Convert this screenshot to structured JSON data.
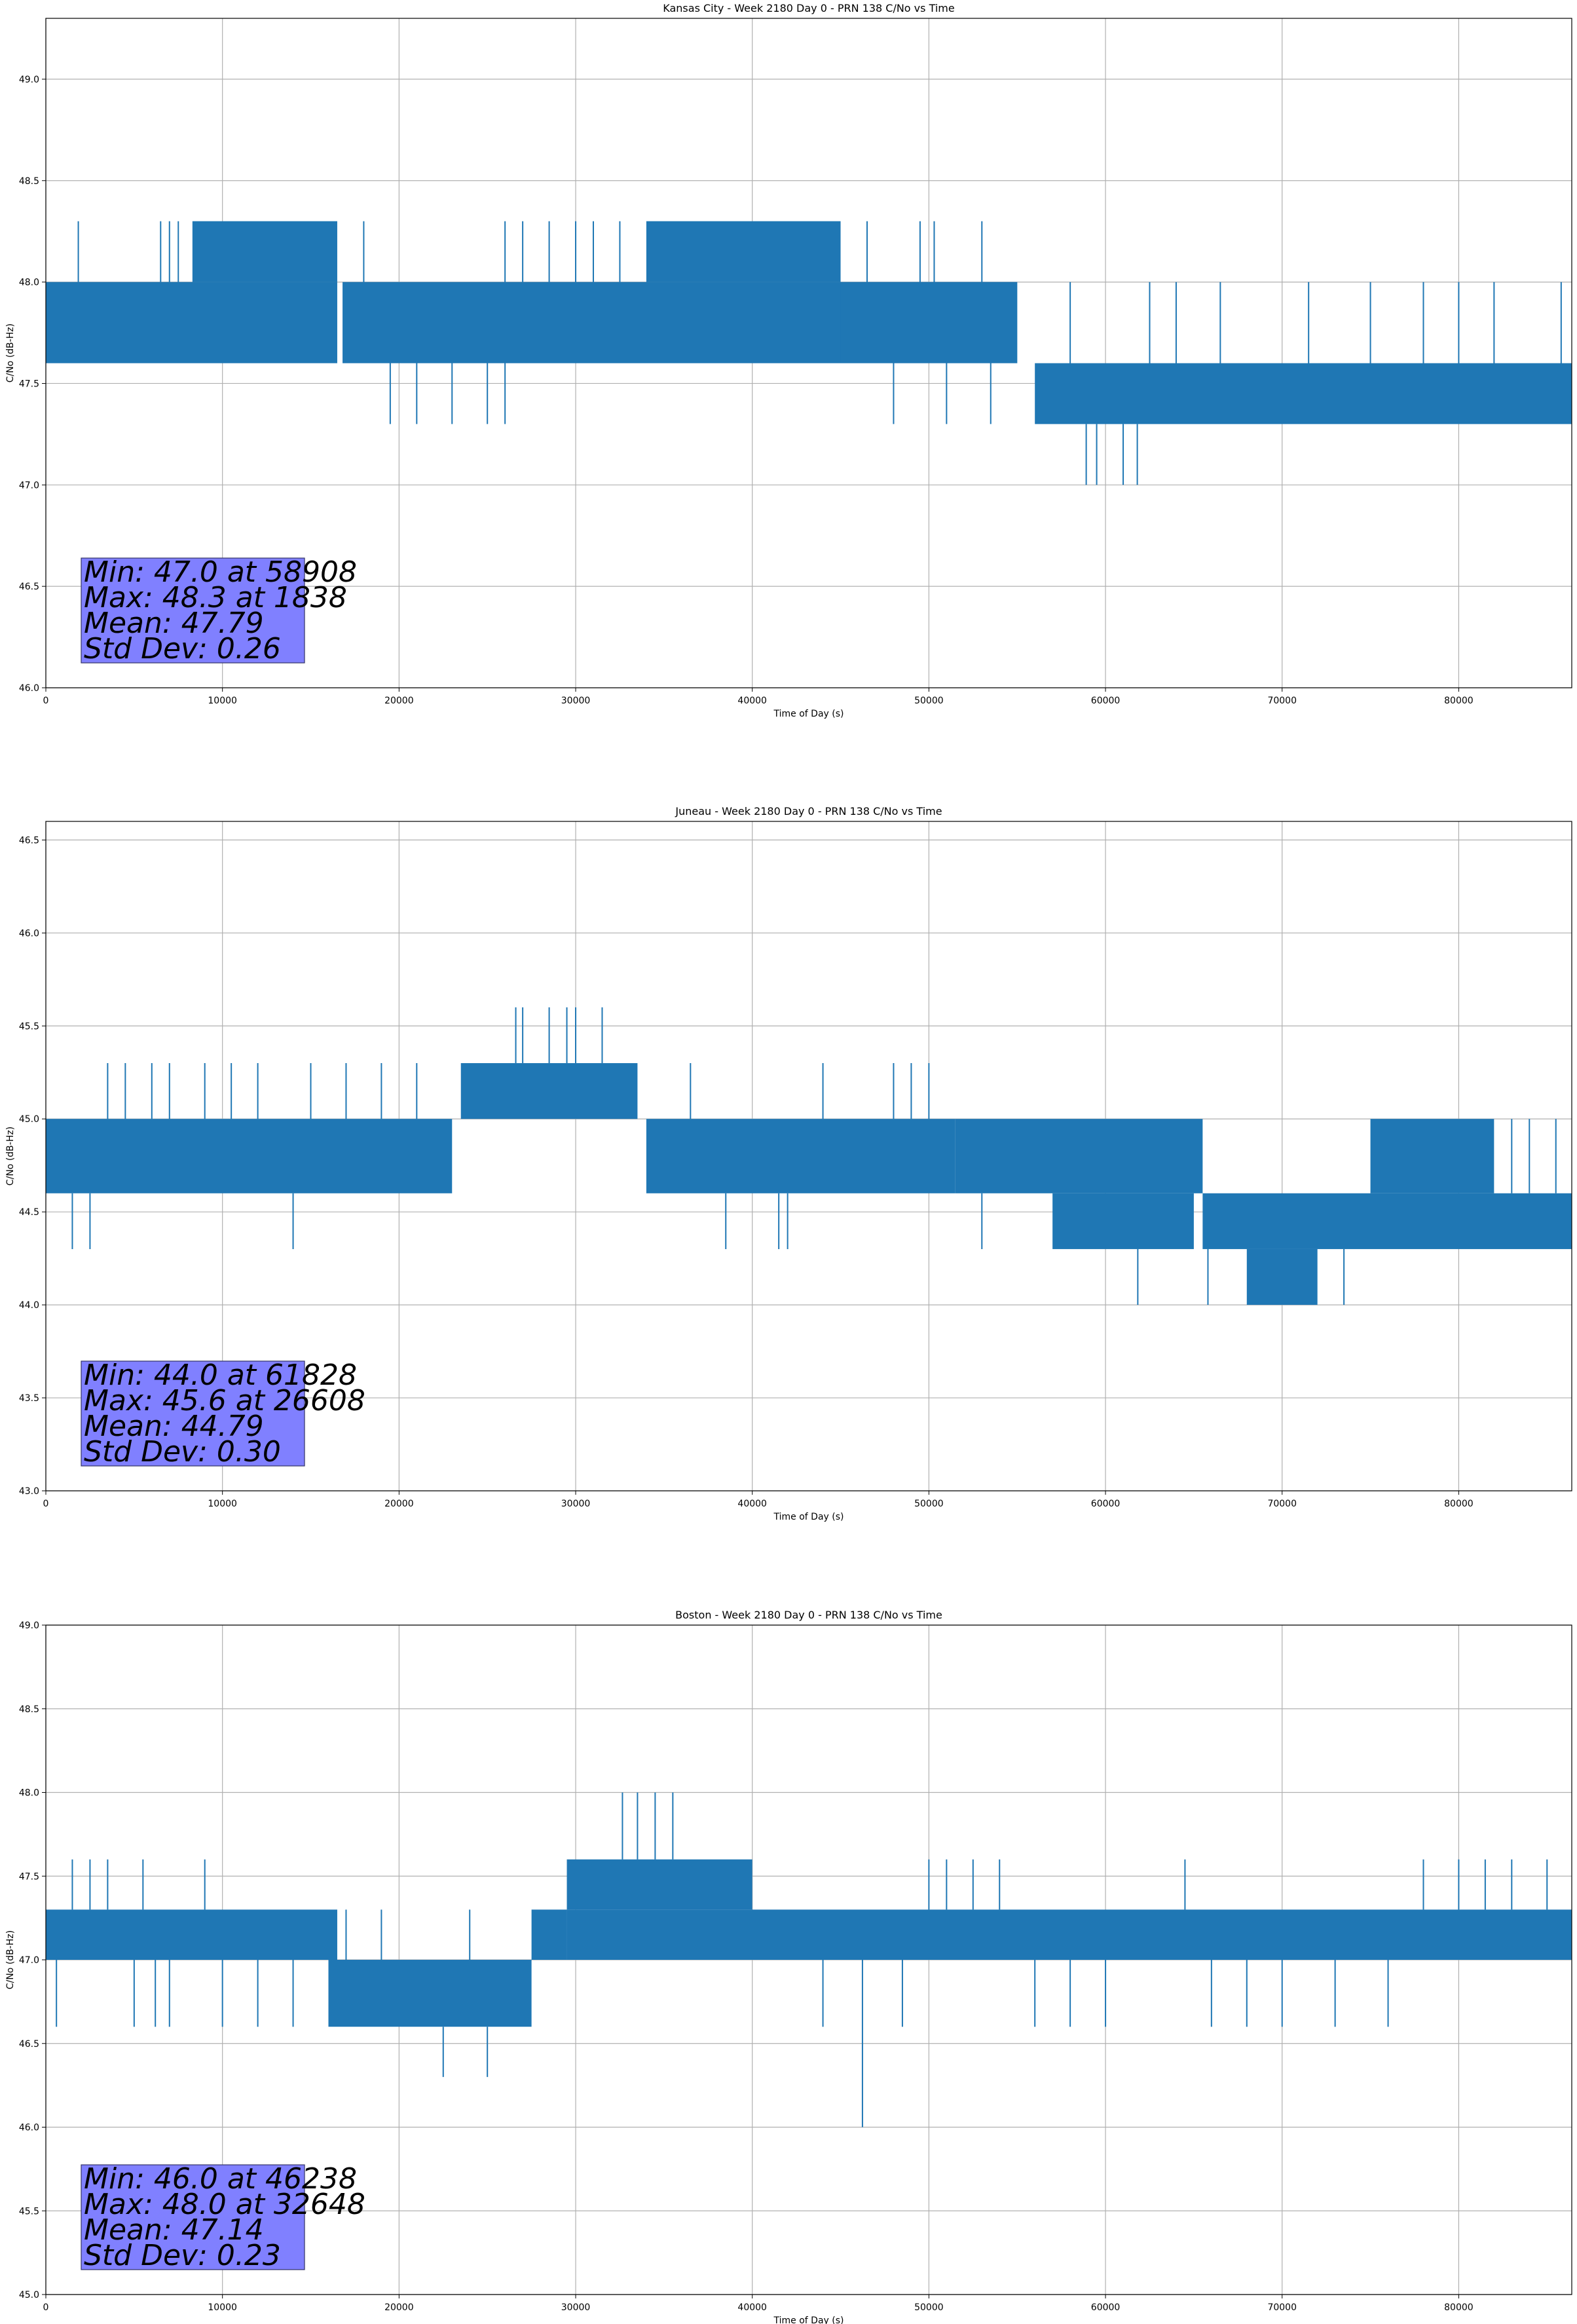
{
  "chart_data": [
    {
      "type": "line",
      "title": "Kansas City - Week 2180 Day 0 - PRN 138 C/No vs Time",
      "xlabel": "Time of Day (s)",
      "ylabel": "C/No (dB-Hz)",
      "xlim": [
        0,
        86400
      ],
      "ylim": [
        46.0,
        49.3
      ],
      "xticks": [
        0,
        10000,
        20000,
        30000,
        40000,
        50000,
        60000,
        70000,
        80000
      ],
      "yticks": [
        46.0,
        46.5,
        47.0,
        47.5,
        48.0,
        48.5,
        49.0
      ],
      "grid": true,
      "color": "#1f77b4",
      "stats_box_color": "#8080ff",
      "stats": [
        "Min: 47.0 at 58908",
        "Max: 48.3 at 1838",
        "Mean: 47.79",
        "Std Dev: 0.26"
      ],
      "segments": [
        {
          "x0": 0,
          "x1": 16500,
          "lo": 47.6,
          "hi": 48.0
        },
        {
          "x0": 8300,
          "x1": 16500,
          "lo": 48.0,
          "hi": 48.3
        },
        {
          "x0": 16800,
          "x1": 55000,
          "lo": 47.6,
          "hi": 48.0
        },
        {
          "x0": 34000,
          "x1": 45000,
          "lo": 48.0,
          "hi": 48.3
        },
        {
          "x0": 45000,
          "x1": 55000,
          "lo": 47.6,
          "hi": 48.0
        },
        {
          "x0": 56000,
          "x1": 86400,
          "lo": 47.3,
          "hi": 47.6
        }
      ],
      "spikes": [
        {
          "x": 1838,
          "lo": 48.0,
          "hi": 48.3
        },
        {
          "x": 6500,
          "lo": 48.0,
          "hi": 48.3
        },
        {
          "x": 7000,
          "lo": 48.0,
          "hi": 48.3
        },
        {
          "x": 7500,
          "lo": 48.0,
          "hi": 48.3
        },
        {
          "x": 18000,
          "lo": 48.0,
          "hi": 48.3
        },
        {
          "x": 26000,
          "lo": 48.0,
          "hi": 48.3
        },
        {
          "x": 27000,
          "lo": 48.0,
          "hi": 48.3
        },
        {
          "x": 28500,
          "lo": 48.0,
          "hi": 48.3
        },
        {
          "x": 30000,
          "lo": 48.0,
          "hi": 48.3
        },
        {
          "x": 31000,
          "lo": 48.0,
          "hi": 48.3
        },
        {
          "x": 32500,
          "lo": 48.0,
          "hi": 48.3
        },
        {
          "x": 46500,
          "lo": 48.0,
          "hi": 48.3
        },
        {
          "x": 49500,
          "lo": 48.0,
          "hi": 48.3
        },
        {
          "x": 50300,
          "lo": 48.0,
          "hi": 48.3
        },
        {
          "x": 53000,
          "lo": 48.0,
          "hi": 48.3
        },
        {
          "x": 19500,
          "lo": 47.3,
          "hi": 47.6
        },
        {
          "x": 21000,
          "lo": 47.3,
          "hi": 47.6
        },
        {
          "x": 23000,
          "lo": 47.3,
          "hi": 47.6
        },
        {
          "x": 25000,
          "lo": 47.3,
          "hi": 47.6
        },
        {
          "x": 26000,
          "lo": 47.3,
          "hi": 47.6
        },
        {
          "x": 48000,
          "lo": 47.3,
          "hi": 47.6
        },
        {
          "x": 51000,
          "lo": 47.3,
          "hi": 47.6
        },
        {
          "x": 53500,
          "lo": 47.3,
          "hi": 47.6
        },
        {
          "x": 58908,
          "lo": 47.0,
          "hi": 47.3
        },
        {
          "x": 59500,
          "lo": 47.0,
          "hi": 47.3
        },
        {
          "x": 61000,
          "lo": 47.0,
          "hi": 47.3
        },
        {
          "x": 61800,
          "lo": 47.0,
          "hi": 47.3
        },
        {
          "x": 58000,
          "lo": 47.6,
          "hi": 48.0
        },
        {
          "x": 62500,
          "lo": 47.6,
          "hi": 48.0
        },
        {
          "x": 64000,
          "lo": 47.6,
          "hi": 48.0
        },
        {
          "x": 66500,
          "lo": 47.6,
          "hi": 48.0
        },
        {
          "x": 71500,
          "lo": 47.6,
          "hi": 48.0
        },
        {
          "x": 75000,
          "lo": 47.6,
          "hi": 48.0
        },
        {
          "x": 78000,
          "lo": 47.6,
          "hi": 48.0
        },
        {
          "x": 80000,
          "lo": 47.6,
          "hi": 48.0
        },
        {
          "x": 82000,
          "lo": 47.6,
          "hi": 48.0
        },
        {
          "x": 85800,
          "lo": 47.6,
          "hi": 48.0
        }
      ]
    },
    {
      "type": "line",
      "title": "Juneau - Week 2180 Day 0 - PRN 138 C/No vs Time",
      "xlabel": "Time of Day (s)",
      "ylabel": "C/No (dB-Hz)",
      "xlim": [
        0,
        86400
      ],
      "ylim": [
        43.0,
        46.6
      ],
      "xticks": [
        0,
        10000,
        20000,
        30000,
        40000,
        50000,
        60000,
        70000,
        80000
      ],
      "yticks": [
        43.0,
        43.5,
        44.0,
        44.5,
        45.0,
        45.5,
        46.0,
        46.5
      ],
      "grid": true,
      "color": "#1f77b4",
      "stats_box_color": "#8080ff",
      "stats": [
        "Min: 44.0 at 61828",
        "Max: 45.6 at 26608",
        "Mean: 44.79",
        "Std Dev: 0.30"
      ],
      "segments": [
        {
          "x0": 0,
          "x1": 23000,
          "lo": 44.6,
          "hi": 45.0
        },
        {
          "x0": 23500,
          "x1": 33500,
          "lo": 45.0,
          "hi": 45.3
        },
        {
          "x0": 34000,
          "x1": 51500,
          "lo": 44.6,
          "hi": 45.0
        },
        {
          "x0": 51500,
          "x1": 65500,
          "lo": 44.6,
          "hi": 45.0
        },
        {
          "x0": 57000,
          "x1": 65000,
          "lo": 44.3,
          "hi": 44.6
        },
        {
          "x0": 65500,
          "x1": 86400,
          "lo": 44.3,
          "hi": 44.6
        },
        {
          "x0": 75000,
          "x1": 82000,
          "lo": 44.6,
          "hi": 45.0
        },
        {
          "x0": 68000,
          "x1": 72000,
          "lo": 44.0,
          "hi": 44.3
        }
      ],
      "spikes": [
        {
          "x": 1500,
          "lo": 44.3,
          "hi": 44.6
        },
        {
          "x": 2500,
          "lo": 44.3,
          "hi": 44.6
        },
        {
          "x": 3500,
          "lo": 45.0,
          "hi": 45.3
        },
        {
          "x": 4500,
          "lo": 45.0,
          "hi": 45.3
        },
        {
          "x": 6000,
          "lo": 45.0,
          "hi": 45.3
        },
        {
          "x": 7000,
          "lo": 45.0,
          "hi": 45.3
        },
        {
          "x": 9000,
          "lo": 45.0,
          "hi": 45.3
        },
        {
          "x": 10500,
          "lo": 45.0,
          "hi": 45.3
        },
        {
          "x": 12000,
          "lo": 45.0,
          "hi": 45.3
        },
        {
          "x": 14000,
          "lo": 44.3,
          "hi": 44.6
        },
        {
          "x": 15000,
          "lo": 45.0,
          "hi": 45.3
        },
        {
          "x": 17000,
          "lo": 45.0,
          "hi": 45.3
        },
        {
          "x": 19000,
          "lo": 45.0,
          "hi": 45.3
        },
        {
          "x": 21000,
          "lo": 45.0,
          "hi": 45.3
        },
        {
          "x": 26608,
          "lo": 45.3,
          "hi": 45.6
        },
        {
          "x": 27000,
          "lo": 45.3,
          "hi": 45.6
        },
        {
          "x": 28500,
          "lo": 45.3,
          "hi": 45.6
        },
        {
          "x": 29500,
          "lo": 45.3,
          "hi": 45.6
        },
        {
          "x": 30000,
          "lo": 45.3,
          "hi": 45.6
        },
        {
          "x": 31500,
          "lo": 45.3,
          "hi": 45.6
        },
        {
          "x": 36500,
          "lo": 45.0,
          "hi": 45.3
        },
        {
          "x": 38500,
          "lo": 44.3,
          "hi": 44.6
        },
        {
          "x": 41500,
          "lo": 44.3,
          "hi": 44.6
        },
        {
          "x": 42000,
          "lo": 44.3,
          "hi": 44.6
        },
        {
          "x": 44000,
          "lo": 45.0,
          "hi": 45.3
        },
        {
          "x": 48000,
          "lo": 45.0,
          "hi": 45.3
        },
        {
          "x": 49000,
          "lo": 45.0,
          "hi": 45.3
        },
        {
          "x": 50000,
          "lo": 45.0,
          "hi": 45.3
        },
        {
          "x": 53000,
          "lo": 44.3,
          "hi": 44.6
        },
        {
          "x": 61828,
          "lo": 44.0,
          "hi": 44.3
        },
        {
          "x": 65800,
          "lo": 44.0,
          "hi": 44.3
        },
        {
          "x": 73500,
          "lo": 44.0,
          "hi": 44.3
        },
        {
          "x": 83000,
          "lo": 44.6,
          "hi": 45.0
        },
        {
          "x": 84000,
          "lo": 44.6,
          "hi": 45.0
        },
        {
          "x": 85500,
          "lo": 44.6,
          "hi": 45.0
        }
      ]
    },
    {
      "type": "line",
      "title": "Boston - Week 2180 Day 0 - PRN 138 C/No vs Time",
      "xlabel": "Time of Day (s)",
      "ylabel": "C/No (dB-Hz)",
      "xlim": [
        0,
        86400
      ],
      "ylim": [
        45.0,
        49.0
      ],
      "xticks": [
        0,
        10000,
        20000,
        30000,
        40000,
        50000,
        60000,
        70000,
        80000
      ],
      "yticks": [
        45.0,
        45.5,
        46.0,
        46.5,
        47.0,
        47.5,
        48.0,
        48.5,
        49.0
      ],
      "grid": true,
      "color": "#1f77b4",
      "stats_box_color": "#8080ff",
      "stats": [
        "Min: 46.0 at 46238",
        "Max: 48.0 at 32648",
        "Mean: 47.14",
        "Std Dev: 0.23"
      ],
      "segments": [
        {
          "x0": 0,
          "x1": 16500,
          "lo": 47.0,
          "hi": 47.3
        },
        {
          "x0": 16000,
          "x1": 27500,
          "lo": 46.6,
          "hi": 47.0
        },
        {
          "x0": 27500,
          "x1": 29500,
          "lo": 47.0,
          "hi": 47.3
        },
        {
          "x0": 29500,
          "x1": 40000,
          "lo": 47.3,
          "hi": 47.6
        },
        {
          "x0": 29500,
          "x1": 86400,
          "lo": 47.0,
          "hi": 47.3
        }
      ],
      "spikes": [
        {
          "x": 600,
          "lo": 46.6,
          "hi": 47.0
        },
        {
          "x": 1500,
          "lo": 47.3,
          "hi": 47.6
        },
        {
          "x": 2500,
          "lo": 47.3,
          "hi": 47.6
        },
        {
          "x": 3500,
          "lo": 47.3,
          "hi": 47.6
        },
        {
          "x": 5000,
          "lo": 46.6,
          "hi": 47.0
        },
        {
          "x": 5500,
          "lo": 47.3,
          "hi": 47.6
        },
        {
          "x": 6200,
          "lo": 46.6,
          "hi": 47.0
        },
        {
          "x": 7000,
          "lo": 46.6,
          "hi": 47.0
        },
        {
          "x": 9000,
          "lo": 47.3,
          "hi": 47.6
        },
        {
          "x": 10000,
          "lo": 46.6,
          "hi": 47.0
        },
        {
          "x": 12000,
          "lo": 46.6,
          "hi": 47.0
        },
        {
          "x": 14000,
          "lo": 46.6,
          "hi": 47.0
        },
        {
          "x": 22500,
          "lo": 46.3,
          "hi": 46.6
        },
        {
          "x": 25000,
          "lo": 46.3,
          "hi": 46.6
        },
        {
          "x": 17000,
          "lo": 47.0,
          "hi": 47.3
        },
        {
          "x": 19000,
          "lo": 47.0,
          "hi": 47.3
        },
        {
          "x": 24000,
          "lo": 47.0,
          "hi": 47.3
        },
        {
          "x": 32648,
          "lo": 47.6,
          "hi": 48.0
        },
        {
          "x": 33500,
          "lo": 47.6,
          "hi": 48.0
        },
        {
          "x": 34500,
          "lo": 47.6,
          "hi": 48.0
        },
        {
          "x": 35500,
          "lo": 47.6,
          "hi": 48.0
        },
        {
          "x": 46238,
          "lo": 46.0,
          "hi": 47.0
        },
        {
          "x": 44000,
          "lo": 46.6,
          "hi": 47.0
        },
        {
          "x": 48500,
          "lo": 46.6,
          "hi": 47.0
        },
        {
          "x": 50000,
          "lo": 47.3,
          "hi": 47.6
        },
        {
          "x": 51000,
          "lo": 47.3,
          "hi": 47.6
        },
        {
          "x": 52500,
          "lo": 47.3,
          "hi": 47.6
        },
        {
          "x": 54000,
          "lo": 47.3,
          "hi": 47.6
        },
        {
          "x": 56000,
          "lo": 46.6,
          "hi": 47.0
        },
        {
          "x": 58000,
          "lo": 46.6,
          "hi": 47.0
        },
        {
          "x": 60000,
          "lo": 46.6,
          "hi": 47.0
        },
        {
          "x": 64500,
          "lo": 47.3,
          "hi": 47.6
        },
        {
          "x": 66000,
          "lo": 46.6,
          "hi": 47.0
        },
        {
          "x": 68000,
          "lo": 46.6,
          "hi": 47.0
        },
        {
          "x": 70000,
          "lo": 46.6,
          "hi": 47.0
        },
        {
          "x": 73000,
          "lo": 46.6,
          "hi": 47.0
        },
        {
          "x": 76000,
          "lo": 46.6,
          "hi": 47.0
        },
        {
          "x": 78000,
          "lo": 47.3,
          "hi": 47.6
        },
        {
          "x": 80000,
          "lo": 47.3,
          "hi": 47.6
        },
        {
          "x": 81500,
          "lo": 47.3,
          "hi": 47.6
        },
        {
          "x": 83000,
          "lo": 47.3,
          "hi": 47.6
        },
        {
          "x": 85000,
          "lo": 47.3,
          "hi": 47.6
        }
      ]
    }
  ]
}
